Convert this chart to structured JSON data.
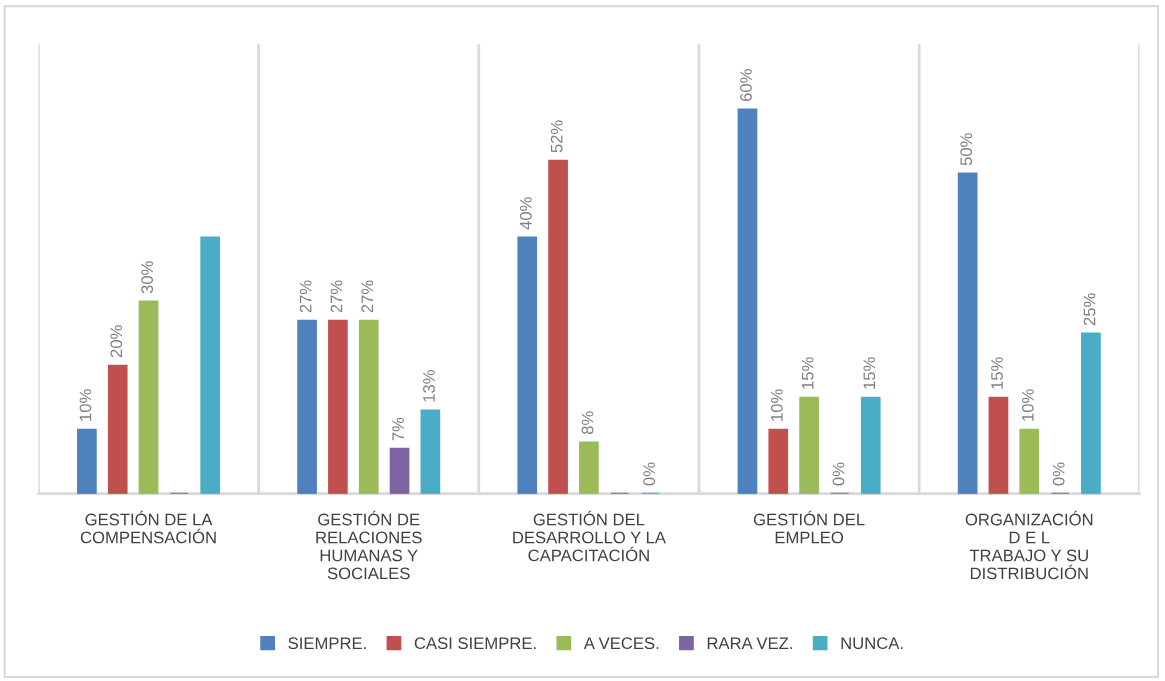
{
  "chart_data": {
    "type": "bar",
    "categories": [
      "GESTIÓN DE LA\nCOMPENSACIÓN",
      "GESTIÓN DE\nRELACIONES\nHUMANAS Y\nSOCIALES",
      "GESTIÓN DEL\nDESARROLLO Y LA\nCAPACITACIÓN",
      "GESTIÓN DEL\nEMPLEO",
      "ORGANIZACIÓN\nD E L\nTRABAJO Y SU\nDISTRIBUCIÓN"
    ],
    "series": [
      {
        "name": "SIEMPRE.",
        "color": "#4f81bd",
        "values": [
          10,
          27,
          40,
          60,
          50
        ],
        "value_labels": [
          "10%",
          "27%",
          "40%",
          "60%",
          "50%"
        ]
      },
      {
        "name": "CASI SIEMPRE.",
        "color": "#c0504d",
        "values": [
          20,
          27,
          52,
          10,
          15
        ],
        "value_labels": [
          "20%",
          "27%",
          "52%",
          "10%",
          "15%"
        ]
      },
      {
        "name": "A VECES.",
        "color": "#9bbb59",
        "values": [
          30,
          27,
          8,
          15,
          10
        ],
        "value_labels": [
          "30%",
          "27%",
          "8%",
          "15%",
          "10%"
        ]
      },
      {
        "name": "RARA VEZ.",
        "color": "#8064a2",
        "values": [
          0,
          7,
          0,
          0,
          0
        ],
        "value_labels": [
          null,
          "7%",
          null,
          "0%",
          "0%"
        ]
      },
      {
        "name": "NUNCA.",
        "color": "#4bacc6",
        "values": [
          40,
          13,
          0,
          15,
          25
        ],
        "value_labels": [
          null,
          "13%",
          "0%",
          "15%",
          "25%"
        ]
      }
    ],
    "legend": "bottom",
    "grid": false
  }
}
